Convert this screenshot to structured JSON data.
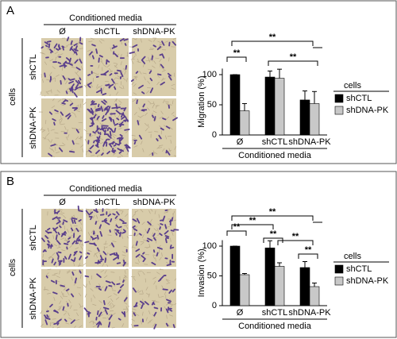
{
  "panels": [
    {
      "label": "A",
      "header": "Conditioned media",
      "columns": [
        "Ø",
        "shCTL",
        "shDNA-PK"
      ],
      "rows": [
        "shCTL",
        "shDNA-PK"
      ],
      "row_group": "cells"
    },
    {
      "label": "B",
      "header": "Conditioned media",
      "columns": [
        "Ø",
        "shCTL",
        "shDNA-PK"
      ],
      "rows": [
        "shCTL",
        "shDNA-PK"
      ],
      "row_group": "cells"
    }
  ],
  "chart_data": [
    {
      "type": "bar",
      "ylabel": "Migration (%)",
      "xlabel": "Conditioned media",
      "legend_title": "cells",
      "categories": [
        "Ø",
        "shCTL",
        "shDNA-PK"
      ],
      "series": [
        {
          "name": "shCTL",
          "color": "#000000",
          "values": [
            100,
            96,
            58
          ],
          "errors": [
            0,
            10,
            15
          ]
        },
        {
          "name": "shDNA-PK",
          "color": "#c8c8c8",
          "values": [
            40,
            94,
            52
          ],
          "errors": [
            12,
            15,
            20
          ]
        }
      ],
      "ylim": [
        0,
        110
      ],
      "yticks": [
        0,
        50,
        100
      ],
      "annotations": [
        "**",
        "**",
        "**"
      ]
    },
    {
      "type": "bar",
      "ylabel": "Invasion (%)",
      "xlabel": "Conditioned media",
      "legend_title": "cells",
      "categories": [
        "Ø",
        "shCTL",
        "shDNA-PK"
      ],
      "series": [
        {
          "name": "shCTL",
          "color": "#000000",
          "values": [
            100,
            97,
            64
          ],
          "errors": [
            0,
            12,
            10
          ]
        },
        {
          "name": "shDNA-PK",
          "color": "#c8c8c8",
          "values": [
            52,
            66,
            32
          ],
          "errors": [
            2,
            6,
            6
          ]
        }
      ],
      "ylim": [
        0,
        110
      ],
      "yticks": [
        0,
        50,
        100
      ],
      "annotations": [
        "**",
        "**",
        "**",
        "**",
        "**",
        "**"
      ]
    }
  ]
}
